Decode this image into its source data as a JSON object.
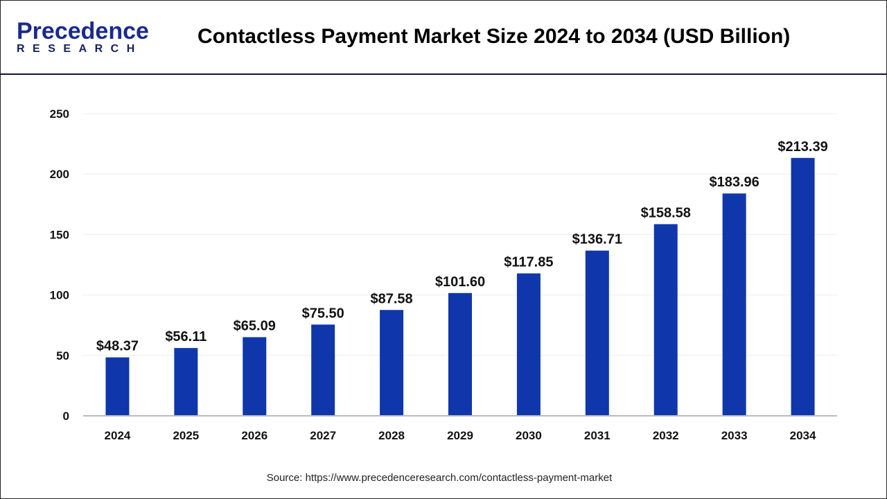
{
  "header": {
    "logo_text_top": "Precedence",
    "logo_text_bottom": "RESEARCH",
    "title": "Contactless Payment Market Size 2024 to 2034 (USD Billion)"
  },
  "source": "Source: https://www.precedenceresearch.com/contactless-payment-market",
  "chart_data": {
    "type": "bar",
    "title": "Contactless Payment Market Size 2024 to 2034 (USD Billion)",
    "categories": [
      "2024",
      "2025",
      "2026",
      "2027",
      "2028",
      "2029",
      "2030",
      "2031",
      "2032",
      "2033",
      "2034"
    ],
    "values": [
      48.37,
      56.11,
      65.09,
      75.5,
      87.58,
      101.6,
      117.85,
      136.71,
      158.58,
      183.96,
      213.39
    ],
    "data_labels": [
      "$48.37",
      "$56.11",
      "$65.09",
      "$75.50",
      "$87.58",
      "$101.60",
      "$117.85",
      "$136.71",
      "$158.58",
      "$183.96",
      "$213.39"
    ],
    "yticks": [
      0,
      50,
      100,
      150,
      200,
      250
    ],
    "ylim": [
      0,
      250
    ],
    "grid": true,
    "bar_color": "#0f37ab",
    "xlabel": "",
    "ylabel": ""
  }
}
